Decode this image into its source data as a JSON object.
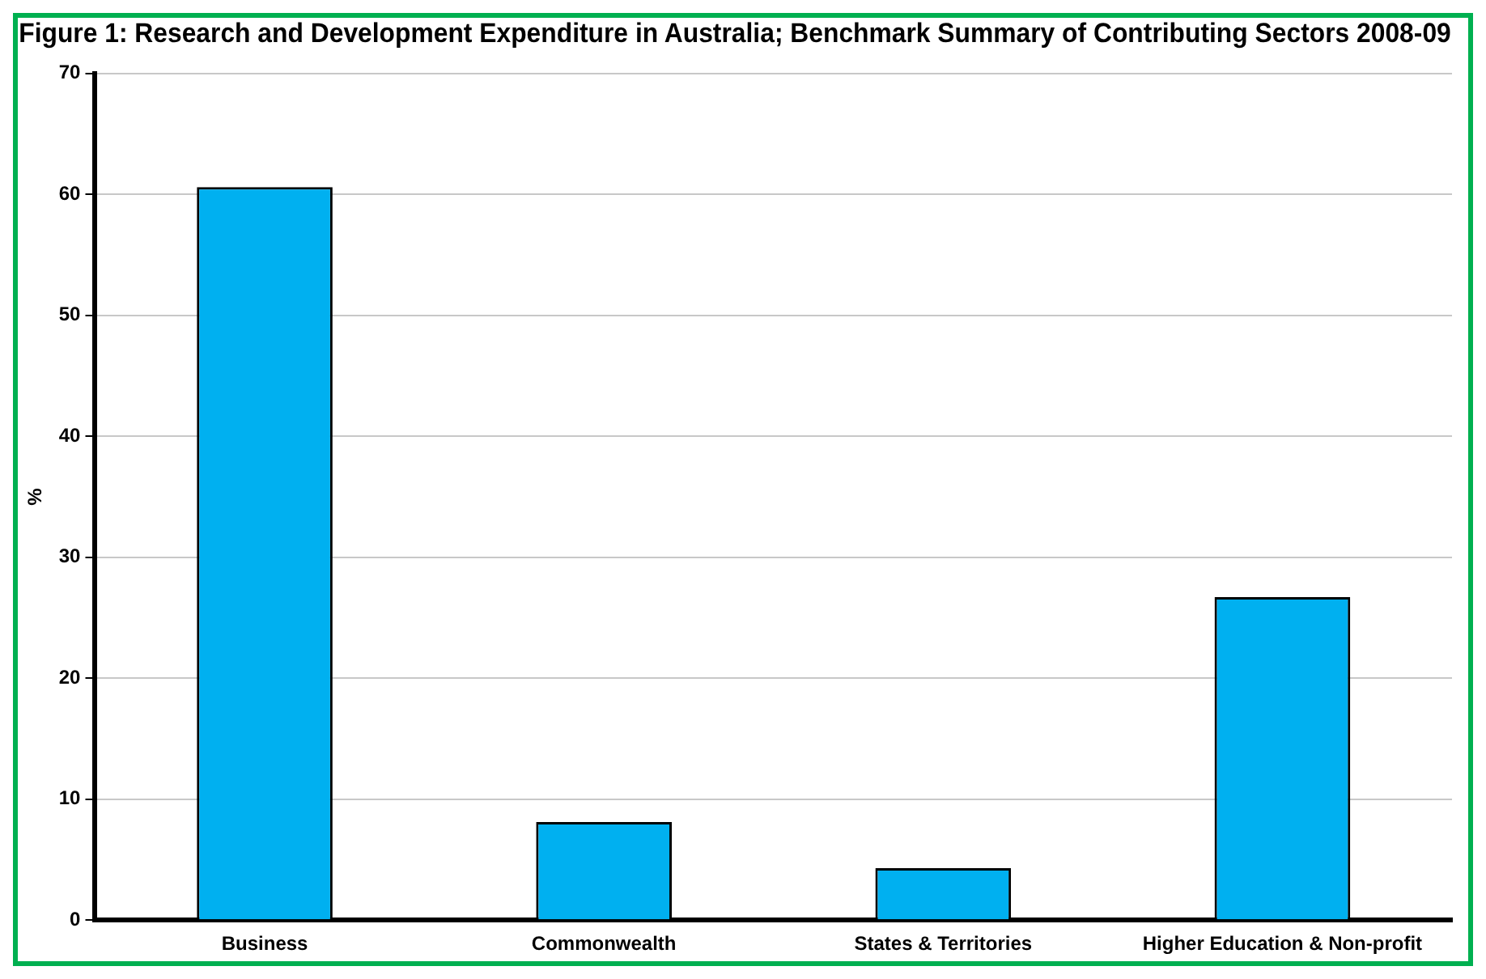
{
  "chart_data": {
    "type": "bar",
    "title": "Figure 1: Research and Development Expenditure in Australia; Benchmark Summary of Contributing Sectors 2008-09",
    "ylabel": "%",
    "categories": [
      "Business",
      "Commonwealth",
      "States & Territories",
      "Higher Education & Non-profit"
    ],
    "values": [
      60.6,
      8.1,
      4.3,
      26.7
    ],
    "color": "#00b0f0",
    "ylim": [
      0,
      70
    ],
    "yticks": [
      0,
      10,
      20,
      30,
      40,
      50,
      60,
      70
    ],
    "grid": "y",
    "legend": false
  }
}
